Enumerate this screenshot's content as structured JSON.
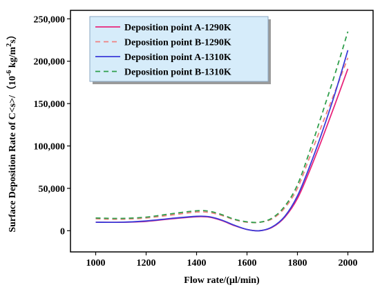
{
  "chart_data": {
    "type": "line",
    "xlabel": "Flow rate/(μl/min)",
    "ylabel_main": "Surface Deposition Rate of C<s>/（10",
    "ylabel_sup": "-6",
    "ylabel_units": " kg/m",
    "ylabel_sup2": "2",
    "ylabel_tail": "s）",
    "xlim": [
      900,
      2100
    ],
    "ylim": [
      -25000,
      260000
    ],
    "x_ticks": [
      1000,
      1200,
      1400,
      1600,
      1800,
      2000
    ],
    "x_tick_labels": [
      "1000",
      "1200",
      "1400",
      "1600",
      "1800",
      "2000"
    ],
    "y_ticks": [
      0,
      50000,
      100000,
      150000,
      200000,
      250000
    ],
    "y_tick_labels": [
      "0",
      "50,000",
      "100,000",
      "150,000",
      "200,000",
      "250,000"
    ],
    "legend_position": "top-left",
    "legend_background": "#d6ecfa",
    "series": [
      {
        "name": "Deposition point A-1290K",
        "color": "#e8247a",
        "dash": "solid",
        "points": [
          [
            1000,
            10000
          ],
          [
            1100,
            10000
          ],
          [
            1200,
            11000
          ],
          [
            1300,
            14000
          ],
          [
            1400,
            16500
          ],
          [
            1450,
            16000
          ],
          [
            1500,
            12000
          ],
          [
            1550,
            6000
          ],
          [
            1600,
            1500
          ],
          [
            1650,
            0
          ],
          [
            1700,
            4000
          ],
          [
            1750,
            16000
          ],
          [
            1800,
            38000
          ],
          [
            1850,
            72000
          ],
          [
            1900,
            110000
          ],
          [
            1950,
            150000
          ],
          [
            2000,
            191000
          ]
        ]
      },
      {
        "name": "Deposition point B-1290K",
        "color": "#f08080",
        "dash": "dashed",
        "points": [
          [
            1000,
            14000
          ],
          [
            1100,
            13500
          ],
          [
            1200,
            15000
          ],
          [
            1300,
            18500
          ],
          [
            1400,
            22000
          ],
          [
            1450,
            21500
          ],
          [
            1500,
            18000
          ],
          [
            1550,
            13000
          ],
          [
            1600,
            10000
          ],
          [
            1650,
            10000
          ],
          [
            1700,
            14000
          ],
          [
            1750,
            27000
          ],
          [
            1800,
            50000
          ],
          [
            1850,
            88000
          ],
          [
            1900,
            127000
          ],
          [
            1950,
            165000
          ],
          [
            2000,
            204000
          ]
        ]
      },
      {
        "name": "Deposition point A-1310K",
        "color": "#3a3ad8",
        "dash": "solid",
        "points": [
          [
            1000,
            10000
          ],
          [
            1100,
            10000
          ],
          [
            1200,
            11500
          ],
          [
            1300,
            14500
          ],
          [
            1400,
            17000
          ],
          [
            1450,
            16500
          ],
          [
            1500,
            12500
          ],
          [
            1550,
            6500
          ],
          [
            1600,
            1500
          ],
          [
            1650,
            0
          ],
          [
            1700,
            4500
          ],
          [
            1750,
            17000
          ],
          [
            1800,
            41000
          ],
          [
            1850,
            77000
          ],
          [
            1900,
            118000
          ],
          [
            1950,
            163000
          ],
          [
            2000,
            213000
          ]
        ]
      },
      {
        "name": "Deposition point B-1310K",
        "color": "#2e9e4a",
        "dash": "dashed",
        "points": [
          [
            1000,
            15000
          ],
          [
            1100,
            14500
          ],
          [
            1200,
            16000
          ],
          [
            1300,
            20000
          ],
          [
            1400,
            23500
          ],
          [
            1450,
            23000
          ],
          [
            1500,
            19000
          ],
          [
            1550,
            13500
          ],
          [
            1600,
            10500
          ],
          [
            1650,
            10000
          ],
          [
            1700,
            15000
          ],
          [
            1750,
            29000
          ],
          [
            1800,
            54000
          ],
          [
            1850,
            95000
          ],
          [
            1900,
            140000
          ],
          [
            1950,
            186000
          ],
          [
            2000,
            235000
          ]
        ]
      }
    ]
  }
}
